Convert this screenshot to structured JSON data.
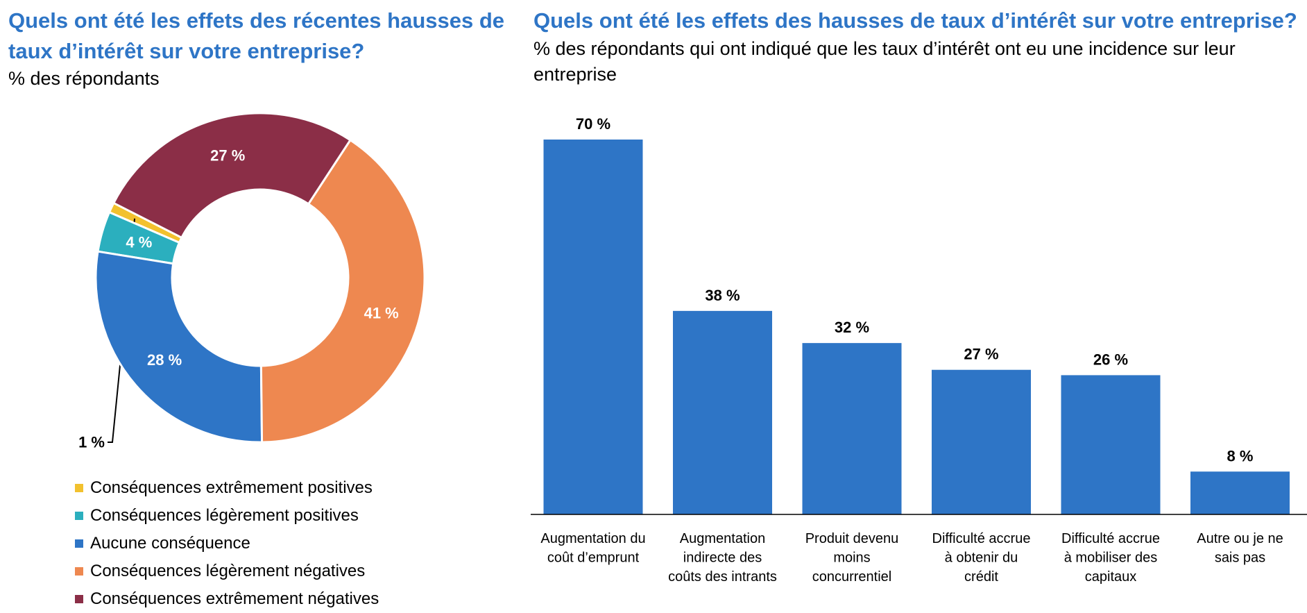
{
  "chart_data": [
    {
      "type": "pie",
      "title": "Quels ont été les effets des récentes hausses de taux d’intérêt sur votre entreprise?",
      "subtitle": "% des répondants",
      "slices": [
        {
          "label": "Conséquences extrêmement positives",
          "value": 1,
          "value_label": "1 %",
          "color": "#F2C12E"
        },
        {
          "label": "Conséquences légèrement positives",
          "value": 4,
          "value_label": "4 %",
          "color": "#2BAFBE"
        },
        {
          "label": "Aucune conséquence",
          "value": 28,
          "value_label": "28 %",
          "color": "#2E75C6"
        },
        {
          "label": "Conséquences légèrement négatives",
          "value": 41,
          "value_label": "41 %",
          "color": "#EE8850"
        },
        {
          "label": "Conséquences extrêmement négatives",
          "value": 27,
          "value_label": "27 %",
          "color": "#8B2E47"
        }
      ],
      "legend": "bottom"
    },
    {
      "type": "bar",
      "title": "Quels ont été les effets des hausses de taux d’intérêt sur votre entreprise?",
      "subtitle": "% des répondants qui ont indiqué que les taux d’intérêt ont eu une incidence sur leur entreprise",
      "categories": [
        "Augmentation du coût d’emprunt",
        "Augmentation indirecte des coûts des intrants",
        "Produit devenu moins concurrentiel",
        "Difficulté accrue à obtenir du crédit",
        "Difficulté accrue à mobiliser des capitaux",
        "Autre ou je ne sais pas"
      ],
      "values": [
        70,
        38,
        32,
        27,
        26,
        8
      ],
      "value_labels": [
        "70 %",
        "38 %",
        "32 %",
        "27 %",
        "26 %",
        "8 %"
      ],
      "color": "#2E75C6",
      "ylim": [
        0,
        70
      ]
    }
  ]
}
